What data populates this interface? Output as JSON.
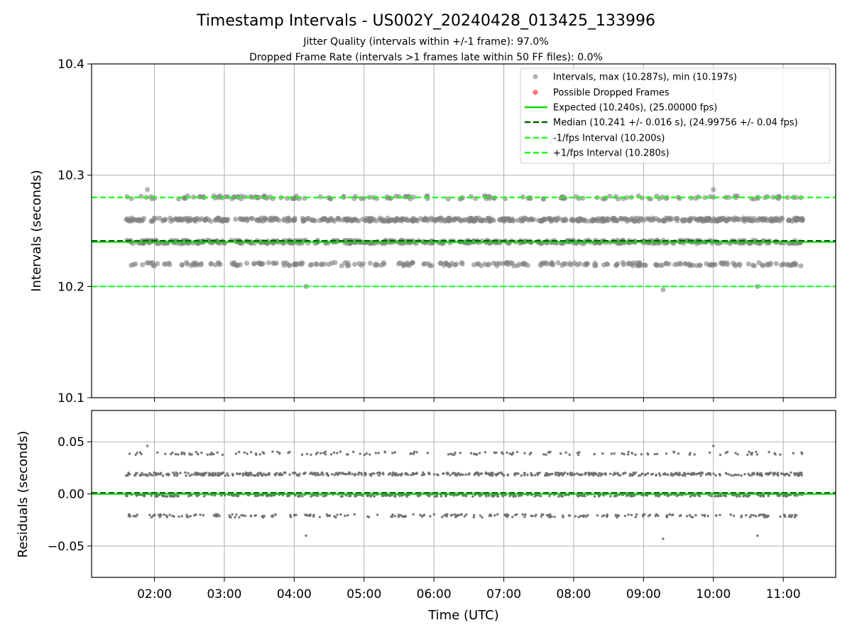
{
  "chart_data": {
    "type": "scatter",
    "title": "Timestamp Intervals - US002Y_20240428_013425_133996",
    "subtitle_lines": [
      "Jitter Quality (intervals within +/-1 frame): 97.0%",
      "Dropped Frame Rate (intervals >1 frames late within 50 FF files): 0.0%"
    ],
    "xlabel": "Time (UTC)",
    "x_range_hours": [
      1.1,
      11.75
    ],
    "data_x_range_hours": [
      1.58,
      11.28
    ],
    "x_ticks": [
      {
        "value": 2,
        "label": "02:00"
      },
      {
        "value": 3,
        "label": "03:00"
      },
      {
        "value": 4,
        "label": "04:00"
      },
      {
        "value": 5,
        "label": "05:00"
      },
      {
        "value": 6,
        "label": "06:00"
      },
      {
        "value": 7,
        "label": "07:00"
      },
      {
        "value": 8,
        "label": "08:00"
      },
      {
        "value": 9,
        "label": "09:00"
      },
      {
        "value": 10,
        "label": "10:00"
      },
      {
        "value": 11,
        "label": "11:00"
      }
    ],
    "grid": true,
    "top_panel": {
      "ylabel": "Intervals (seconds)",
      "ylim": [
        10.1,
        10.4
      ],
      "y_ticks": [
        {
          "value": 10.1,
          "label": "10.1"
        },
        {
          "value": 10.2,
          "label": "10.2"
        },
        {
          "value": 10.3,
          "label": "10.3"
        },
        {
          "value": 10.4,
          "label": "10.4"
        }
      ],
      "interval_clusters": [
        {
          "value": 10.22,
          "count": 260
        },
        {
          "value": 10.24,
          "count": 520
        },
        {
          "value": 10.26,
          "count": 560
        },
        {
          "value": 10.28,
          "count": 160
        }
      ],
      "interval_outliers": [
        {
          "x": 4.17,
          "y": 10.2
        },
        {
          "x": 9.28,
          "y": 10.197
        },
        {
          "x": 10.63,
          "y": 10.2
        },
        {
          "x": 1.9,
          "y": 10.287
        },
        {
          "x": 10.0,
          "y": 10.287
        }
      ],
      "dropped_frames": [],
      "series": [
        {
          "name": "Intervals, max (10.287s), min (10.197s)",
          "color": "#808080"
        },
        {
          "name": "Possible Dropped Frames",
          "color": "#ff0000"
        }
      ],
      "lines": [
        {
          "name": "Expected (10.240s), (25.00000 fps)",
          "y": 10.24,
          "color": "#00e000",
          "style": "solid"
        },
        {
          "name": "Median (10.241 +/- 0.016 s), (24.99756 +/- 0.04 fps)",
          "y": 10.241,
          "color": "#006400",
          "style": "dashed"
        },
        {
          "name": "-1/fps Interval (10.200s)",
          "y": 10.2,
          "color": "#1aff1a",
          "style": "dashed"
        },
        {
          "name": "+1/fps Interval (10.280s)",
          "y": 10.28,
          "color": "#1aff1a",
          "style": "dashed"
        }
      ],
      "legend_placement": "top-right"
    },
    "bottom_panel": {
      "ylabel": "Residuals (seconds)",
      "ylim": [
        -0.08,
        0.08
      ],
      "y_ticks": [
        {
          "value": 0.05,
          "label": "0.05"
        },
        {
          "value": 0.0,
          "label": "0.00"
        },
        {
          "value": -0.05,
          "label": "−0.05"
        }
      ],
      "residual_clusters": [
        {
          "value": -0.021,
          "count": 260
        },
        {
          "value": -0.001,
          "count": 520
        },
        {
          "value": 0.019,
          "count": 560
        },
        {
          "value": 0.039,
          "count": 160
        }
      ],
      "residual_outliers": [
        {
          "x": 4.17,
          "y": -0.04
        },
        {
          "x": 9.28,
          "y": -0.043
        },
        {
          "x": 10.63,
          "y": -0.04
        },
        {
          "x": 1.9,
          "y": 0.046
        },
        {
          "x": 10.0,
          "y": 0.046
        }
      ],
      "zero_lines": [
        {
          "y": 0.0,
          "color": "#00e000",
          "style": "solid"
        },
        {
          "y": 0.001,
          "color": "#006400",
          "style": "dashed"
        }
      ]
    }
  }
}
